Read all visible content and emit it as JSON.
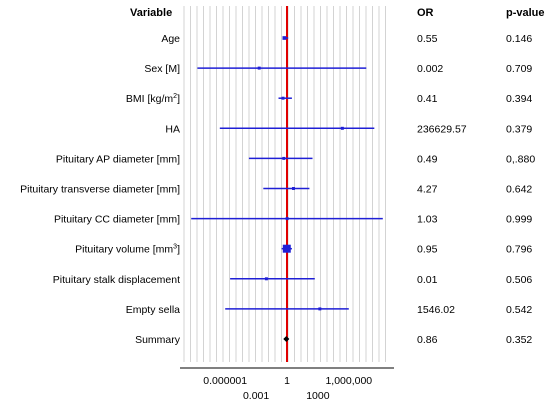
{
  "chart_data": {
    "type": "forest",
    "headers": {
      "variable": "Variable",
      "or": "OR",
      "p": "p-value"
    },
    "reference_line": 1,
    "colors": {
      "interval": "#1f1fd6",
      "reference": "#e00000",
      "summary": "#000000",
      "grid": "#c8c8c8"
    },
    "x_scale": "log",
    "xlim": [
      1e-10,
      10000000000.0
    ],
    "x_ticks_row1": [
      {
        "value": 1e-06,
        "label": "0.000001"
      },
      {
        "value": 1,
        "label": "1"
      },
      {
        "value": 1000000.0,
        "label": "1,000,000"
      }
    ],
    "x_ticks_row2": [
      {
        "value": 0.001,
        "label": "0.001"
      },
      {
        "value": 1000,
        "label": "1000"
      }
    ],
    "rows": [
      {
        "label": "Age",
        "sup": "",
        "label_tail": "",
        "or": 0.55,
        "or_text": "0.55",
        "p_text": "0.146",
        "lo": 0.4,
        "hi": 1.3,
        "marker": "square",
        "weight": 1.4
      },
      {
        "label": "Sex [M]",
        "sup": "",
        "label_tail": "",
        "or": 0.002,
        "or_text": "0.002",
        "p_text": "0.709",
        "lo": 2e-09,
        "hi": 50000000.0,
        "marker": "square",
        "weight": 0.8
      },
      {
        "label": "BMI [kg/m",
        "sup": "2",
        "label_tail": "]",
        "or": 0.41,
        "or_text": "0.41",
        "p_text": "0.394",
        "lo": 0.15,
        "hi": 3.0,
        "marker": "square",
        "weight": 0.8
      },
      {
        "label": "HA",
        "sup": "",
        "label_tail": "",
        "or": 236629.57,
        "or_text": "236629.57",
        "p_text": "0.379",
        "lo": 3e-07,
        "hi": 300000000.0,
        "marker": "square",
        "weight": 0.8
      },
      {
        "label": "Pituitary AP diameter [mm]",
        "sup": "",
        "label_tail": "",
        "or": 0.49,
        "or_text": "0.49",
        "p_text": "0,.880",
        "lo": 0.0002,
        "hi": 300,
        "marker": "square",
        "weight": 0.8
      },
      {
        "label": "Pituitary transverse diameter [mm]",
        "sup": "",
        "label_tail": "",
        "or": 4.27,
        "or_text": "4.27",
        "p_text": "0.642",
        "lo": 0.005,
        "hi": 150,
        "marker": "square",
        "weight": 0.8
      },
      {
        "label": "Pituitary CC diameter [mm]",
        "sup": "",
        "label_tail": "",
        "or": 1.03,
        "or_text": "1.03",
        "p_text": "0.999",
        "lo": 5e-10,
        "hi": 2000000000.0,
        "marker": "square",
        "weight": 0.8
      },
      {
        "label": "Pituitary volume [mm",
        "sup": "3",
        "label_tail": "]",
        "or": 0.95,
        "or_text": "0.95",
        "p_text": "0.796",
        "lo": 0.3,
        "hi": 3.0,
        "marker": "square",
        "weight": 5
      },
      {
        "label": "Pituitary stalk displacement",
        "sup": "",
        "label_tail": "",
        "or": 0.01,
        "or_text": "0.01",
        "p_text": "0.506",
        "lo": 3e-06,
        "hi": 500,
        "marker": "square",
        "weight": 0.8
      },
      {
        "label": "Empty sella",
        "sup": "",
        "label_tail": "",
        "or": 1546.02,
        "or_text": "1546.02",
        "p_text": "0.542",
        "lo": 1e-06,
        "hi": 1000000.0,
        "marker": "square",
        "weight": 0.8
      },
      {
        "label": "Summary",
        "sup": "",
        "label_tail": "",
        "or": 0.86,
        "or_text": "0.86",
        "p_text": "0.352",
        "lo": 0.5,
        "hi": 1.5,
        "marker": "diamond",
        "weight": 1
      }
    ]
  }
}
